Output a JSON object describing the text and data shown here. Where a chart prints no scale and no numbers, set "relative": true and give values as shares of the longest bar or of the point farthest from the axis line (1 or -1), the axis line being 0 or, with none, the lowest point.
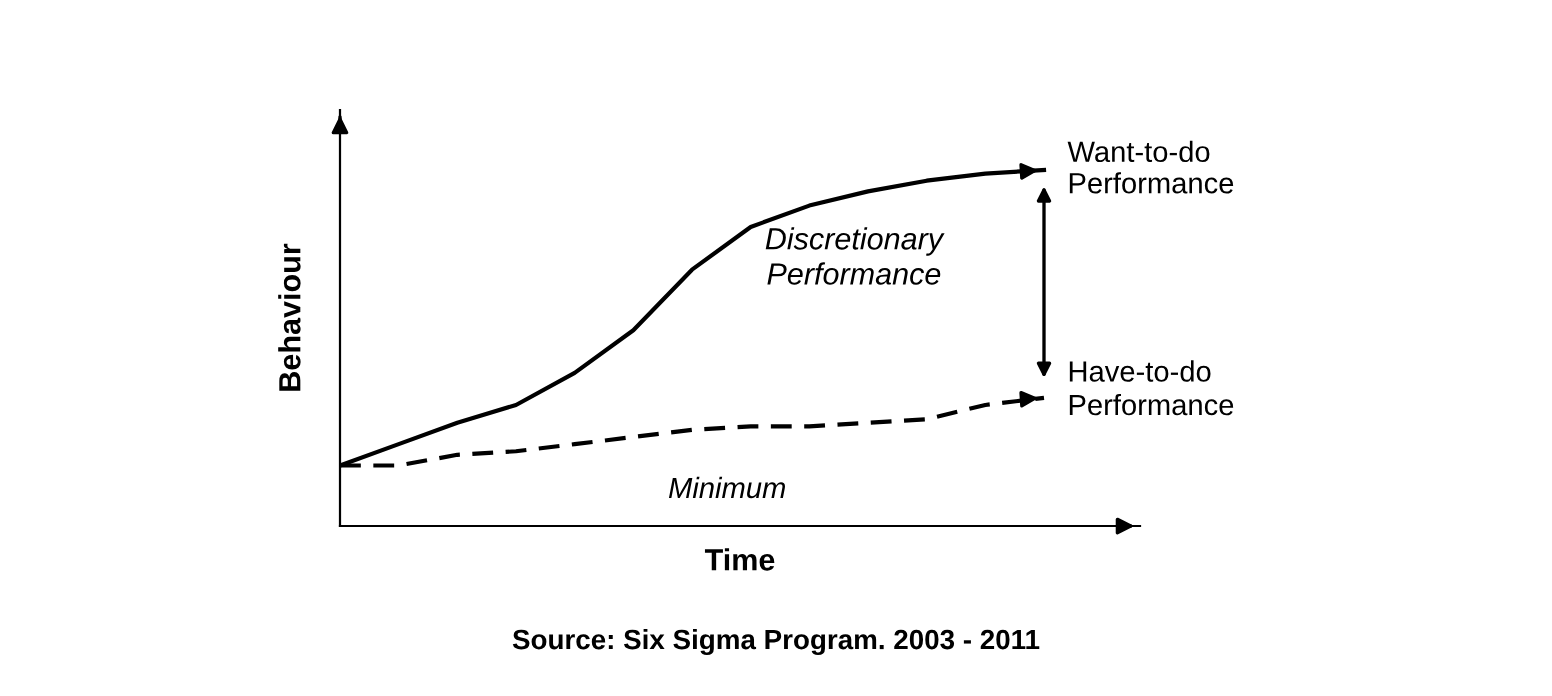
{
  "chart_data": {
    "type": "line",
    "relative": true,
    "xlabel": "Time",
    "ylabel": "Behaviour",
    "categories": [
      null,
      null,
      null,
      null,
      null,
      null,
      null,
      null,
      null,
      null,
      null,
      null,
      null
    ],
    "series": [
      {
        "color": "#000000",
        "line_style": "solid",
        "values": [
          0.17,
          0.23,
          0.29,
          0.34,
          0.43,
          0.55,
          0.72,
          0.84,
          0.9,
          0.94,
          0.97,
          0.99,
          1.0
        ]
      },
      {
        "color": "#000000",
        "line_style": "dashed",
        "values": [
          0.17,
          0.17,
          0.2,
          0.21,
          0.23,
          0.25,
          0.27,
          0.28,
          0.28,
          0.29,
          0.3,
          0.34,
          0.36
        ]
      }
    ],
    "annotations": [
      "Want-to-do\nPerformance",
      "Discretionary\nPerformance",
      "Have-to-do\nPerformance",
      "Minimum",
      "Source: Six Sigma Program. 2003 - 2011"
    ],
    "legend": false,
    "marker": "none"
  }
}
